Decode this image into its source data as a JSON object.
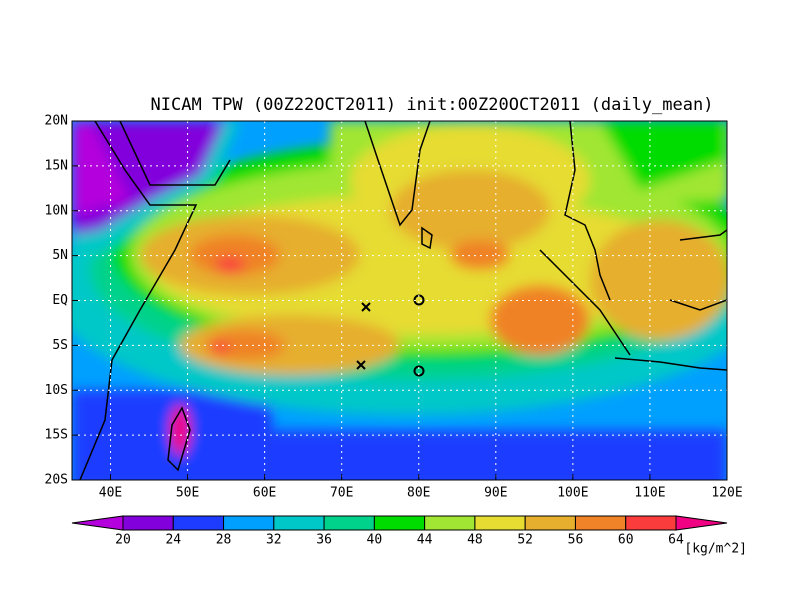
{
  "map": {
    "title": "NICAM TPW (00Z22OCT2011) init:00Z20OCT2011 (daily_mean)",
    "lon_range": [
      35,
      120
    ],
    "lat_range": [
      -20,
      20
    ],
    "lon_ticks": [
      {
        "value": 40,
        "label": "40E"
      },
      {
        "value": 50,
        "label": "50E"
      },
      {
        "value": 60,
        "label": "60E"
      },
      {
        "value": 70,
        "label": "70E"
      },
      {
        "value": 80,
        "label": "80E"
      },
      {
        "value": 90,
        "label": "90E"
      },
      {
        "value": 100,
        "label": "100E"
      },
      {
        "value": 110,
        "label": "110E"
      },
      {
        "value": 120,
        "label": "120E"
      }
    ],
    "lat_ticks": [
      {
        "value": 20,
        "label": "20N"
      },
      {
        "value": 15,
        "label": "15N"
      },
      {
        "value": 10,
        "label": "10N"
      },
      {
        "value": 5,
        "label": "5N"
      },
      {
        "value": 0,
        "label": "EQ"
      },
      {
        "value": -5,
        "label": "5S"
      },
      {
        "value": -10,
        "label": "10S"
      },
      {
        "value": -15,
        "label": "15S"
      },
      {
        "value": -20,
        "label": "20S"
      }
    ],
    "colorbar": {
      "levels": [
        20,
        24,
        28,
        32,
        36,
        40,
        44,
        48,
        52,
        56,
        60,
        64
      ],
      "colors": [
        "#b400dc",
        "#8200dc",
        "#1e3cff",
        "#00a0ff",
        "#00c8c8",
        "#00d28c",
        "#00dc00",
        "#a0e632",
        "#e6dc32",
        "#e6af2d",
        "#f08228",
        "#fa3c3c",
        "#f00082"
      ],
      "unit": "[kg/m^2]"
    }
  }
}
